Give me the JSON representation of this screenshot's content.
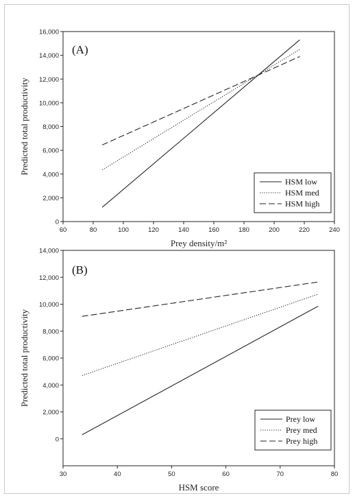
{
  "chart_data": [
    {
      "type": "line",
      "panel_label": "(A)",
      "xlabel": "Prey density/m²",
      "ylabel": "Predicted total productivity",
      "xlim": [
        60,
        240
      ],
      "ylim": [
        0,
        16000
      ],
      "xticks": [
        60,
        80,
        100,
        120,
        140,
        160,
        180,
        200,
        220,
        240
      ],
      "yticks": [
        0,
        2000,
        4000,
        6000,
        8000,
        10000,
        12000,
        14000,
        16000
      ],
      "xtick_labels": [
        "60",
        "80",
        "100",
        "120",
        "140",
        "160",
        "180",
        "200",
        "220",
        "240"
      ],
      "ytick_labels": [
        "0",
        "2,000",
        "4,000",
        "6,000",
        "8,000",
        "10,000",
        "12,000",
        "14,000",
        "16,000"
      ],
      "legend_position": "bottom-right",
      "grid": false,
      "series": [
        {
          "name": "HSM low",
          "style": "solid",
          "x": [
            86,
            217
          ],
          "y": [
            1200,
            15300
          ]
        },
        {
          "name": "HSM med",
          "style": "dotted",
          "x": [
            86,
            217
          ],
          "y": [
            4350,
            14500
          ]
        },
        {
          "name": "HSM high",
          "style": "dashed",
          "x": [
            86,
            217
          ],
          "y": [
            6450,
            13900
          ]
        }
      ]
    },
    {
      "type": "line",
      "panel_label": "(B)",
      "xlabel": "HSM score",
      "ylabel": "Predicted total productivity",
      "xlim": [
        30,
        80
      ],
      "ylim": [
        -2000,
        14000
      ],
      "xticks": [
        30,
        40,
        50,
        60,
        70,
        80
      ],
      "yticks": [
        0,
        2000,
        4000,
        6000,
        8000,
        10000,
        12000,
        14000
      ],
      "xtick_labels": [
        "30",
        "40",
        "50",
        "60",
        "70",
        "80"
      ],
      "ytick_labels": [
        "0",
        "2,000",
        "4,000",
        "6,000",
        "8,000",
        "10,000",
        "12,000",
        "14,000"
      ],
      "legend_position": "bottom-right",
      "grid": false,
      "series": [
        {
          "name": "Prey low",
          "style": "solid",
          "x": [
            33.5,
            77
          ],
          "y": [
            300,
            9850
          ]
        },
        {
          "name": "Prey med",
          "style": "dotted",
          "x": [
            33.5,
            77
          ],
          "y": [
            4700,
            10750
          ]
        },
        {
          "name": "Prey high",
          "style": "dashed",
          "x": [
            33.5,
            77
          ],
          "y": [
            9100,
            11650
          ]
        }
      ]
    }
  ]
}
